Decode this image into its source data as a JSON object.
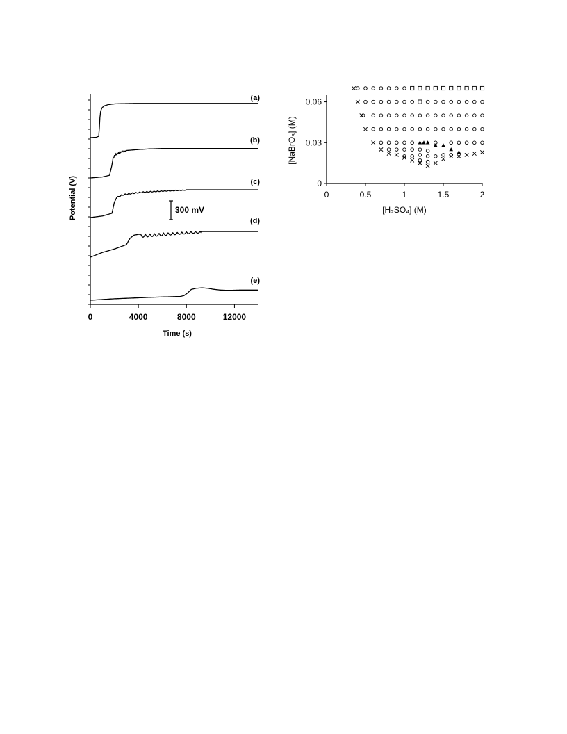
{
  "chart_data": [
    {
      "type": "line",
      "xlabel": "Time (s)",
      "ylabel": "Potential (V)",
      "xlim": [
        0,
        14000
      ],
      "x_ticks": [
        "0",
        "4000",
        "8000",
        "12000"
      ],
      "scale_bar_label": "300 mV",
      "grid": false,
      "series": [
        {
          "name": "(a)",
          "x": [
            0,
            500,
            700,
            750,
            800,
            850,
            900,
            950,
            1000,
            1200,
            1500,
            2000,
            3000,
            4000,
            6000,
            8000,
            10000,
            12000,
            14000
          ],
          "y": [
            0,
            0.01,
            0.04,
            0.28,
            0.58,
            0.74,
            0.8,
            0.84,
            0.87,
            0.92,
            0.95,
            0.97,
            0.98,
            0.985,
            0.985,
            0.985,
            0.985,
            0.985,
            0.985
          ]
        },
        {
          "name": "(b)",
          "x": [
            0,
            1000,
            1600,
            1800,
            1900,
            2000,
            2100,
            2300,
            2600,
            3000,
            4000,
            5000,
            6000,
            8000,
            10000,
            12000,
            14000
          ],
          "y": [
            0,
            0.03,
            0.08,
            0.4,
            0.62,
            0.7,
            0.74,
            0.78,
            0.82,
            0.84,
            0.87,
            0.89,
            0.9,
            0.9,
            0.9,
            0.9,
            0.9
          ],
          "oscillation": {
            "start": 1900,
            "end": 3000,
            "period": 110,
            "amp": 0.05
          }
        },
        {
          "name": "(c)",
          "x": [
            0,
            1000,
            1800,
            2000,
            2200,
            2400,
            2800,
            3500,
            4500,
            6000,
            7500,
            8000,
            10000,
            12000,
            14000
          ],
          "y": [
            0,
            0.05,
            0.14,
            0.5,
            0.66,
            0.72,
            0.77,
            0.81,
            0.85,
            0.88,
            0.9,
            0.91,
            0.91,
            0.91,
            0.91
          ],
          "oscillation": {
            "start": 2300,
            "end": 8000,
            "period": 300,
            "amp": 0.035
          }
        },
        {
          "name": "(d)",
          "x": [
            0,
            1000,
            2000,
            3000,
            3300,
            3600,
            4000,
            5000,
            6000,
            7000,
            8000,
            8500,
            9000,
            10000,
            12000,
            14000
          ],
          "y": [
            0,
            0.15,
            0.26,
            0.4,
            0.6,
            0.7,
            0.73,
            0.75,
            0.77,
            0.79,
            0.81,
            0.82,
            0.82,
            0.82,
            0.82,
            0.82
          ],
          "oscillation": {
            "start": 4200,
            "end": 9200,
            "period": 380,
            "amp": 0.1
          }
        },
        {
          "name": "(e)",
          "x": [
            0,
            2000,
            5000,
            7500,
            7800,
            8100,
            8400,
            8800,
            9300,
            9800,
            10200,
            10800,
            11500,
            12500,
            14000
          ],
          "y": [
            0,
            0.1,
            0.2,
            0.26,
            0.32,
            0.5,
            0.74,
            0.82,
            0.85,
            0.82,
            0.76,
            0.7,
            0.68,
            0.7,
            0.7
          ]
        }
      ]
    },
    {
      "type": "scatter",
      "xlabel": "[H₂SO₄] (M)",
      "ylabel": "[NaBrO₃] (M)",
      "xlim": [
        0,
        2
      ],
      "ylim": [
        0,
        0.07
      ],
      "x_ticks": [
        "0",
        "0.5",
        "1",
        "1.5",
        "2"
      ],
      "y_ticks": [
        "0",
        "0.03",
        "0.06"
      ],
      "grid": false,
      "series": [
        {
          "marker": "circle",
          "points": [
            [
              0.4,
              0.07
            ],
            [
              0.5,
              0.07
            ],
            [
              0.6,
              0.07
            ],
            [
              0.7,
              0.07
            ],
            [
              0.8,
              0.07
            ],
            [
              0.9,
              0.07
            ],
            [
              1.0,
              0.07
            ],
            [
              0.5,
              0.06
            ],
            [
              0.6,
              0.06
            ],
            [
              0.7,
              0.06
            ],
            [
              0.8,
              0.06
            ],
            [
              0.9,
              0.06
            ],
            [
              1.0,
              0.06
            ],
            [
              1.1,
              0.06
            ],
            [
              1.3,
              0.06
            ],
            [
              1.4,
              0.06
            ],
            [
              1.5,
              0.06
            ],
            [
              1.6,
              0.06
            ],
            [
              1.7,
              0.06
            ],
            [
              1.8,
              0.06
            ],
            [
              1.9,
              0.06
            ],
            [
              2.0,
              0.06
            ],
            [
              0.47,
              0.05
            ],
            [
              0.6,
              0.05
            ],
            [
              0.7,
              0.05
            ],
            [
              0.8,
              0.05
            ],
            [
              0.9,
              0.05
            ],
            [
              1.0,
              0.05
            ],
            [
              1.1,
              0.05
            ],
            [
              1.2,
              0.05
            ],
            [
              1.3,
              0.05
            ],
            [
              1.4,
              0.05
            ],
            [
              1.5,
              0.05
            ],
            [
              1.6,
              0.05
            ],
            [
              1.7,
              0.05
            ],
            [
              1.8,
              0.05
            ],
            [
              1.9,
              0.05
            ],
            [
              2.0,
              0.05
            ],
            [
              0.6,
              0.04
            ],
            [
              0.7,
              0.04
            ],
            [
              0.8,
              0.04
            ],
            [
              0.9,
              0.04
            ],
            [
              1.0,
              0.04
            ],
            [
              1.1,
              0.04
            ],
            [
              1.2,
              0.04
            ],
            [
              1.3,
              0.04
            ],
            [
              1.4,
              0.04
            ],
            [
              1.5,
              0.04
            ],
            [
              1.6,
              0.04
            ],
            [
              1.7,
              0.04
            ],
            [
              1.8,
              0.04
            ],
            [
              1.9,
              0.04
            ],
            [
              2.0,
              0.04
            ],
            [
              0.7,
              0.03
            ],
            [
              0.8,
              0.03
            ],
            [
              0.9,
              0.03
            ],
            [
              1.0,
              0.03
            ],
            [
              1.1,
              0.03
            ],
            [
              1.4,
              0.03
            ],
            [
              1.6,
              0.03
            ],
            [
              1.7,
              0.03
            ],
            [
              1.8,
              0.03
            ],
            [
              1.9,
              0.03
            ],
            [
              2.0,
              0.03
            ],
            [
              0.8,
              0.025
            ],
            [
              0.9,
              0.025
            ],
            [
              1.0,
              0.025
            ],
            [
              1.1,
              0.025
            ],
            [
              1.2,
              0.025
            ],
            [
              1.3,
              0.024
            ],
            [
              1.0,
              0.02
            ],
            [
              1.1,
              0.02
            ],
            [
              1.2,
              0.021
            ],
            [
              1.3,
              0.02
            ],
            [
              1.4,
              0.02
            ],
            [
              1.5,
              0.021
            ],
            [
              1.6,
              0.021
            ],
            [
              1.2,
              0.017
            ],
            [
              1.3,
              0.016
            ]
          ]
        },
        {
          "marker": "square",
          "points": [
            [
              1.1,
              0.07
            ],
            [
              1.2,
              0.07
            ],
            [
              1.3,
              0.07
            ],
            [
              1.4,
              0.07
            ],
            [
              1.5,
              0.07
            ],
            [
              1.6,
              0.07
            ],
            [
              1.7,
              0.07
            ],
            [
              1.8,
              0.07
            ],
            [
              1.9,
              0.07
            ],
            [
              2.0,
              0.07
            ],
            [
              1.2,
              0.06
            ]
          ]
        },
        {
          "marker": "cross",
          "points": [
            [
              0.35,
              0.07
            ],
            [
              0.4,
              0.06
            ],
            [
              0.45,
              0.05
            ],
            [
              0.5,
              0.04
            ],
            [
              0.6,
              0.03
            ],
            [
              0.7,
              0.025
            ],
            [
              0.8,
              0.022
            ],
            [
              0.9,
              0.021
            ],
            [
              1.0,
              0.019
            ],
            [
              1.1,
              0.017
            ],
            [
              1.2,
              0.015
            ],
            [
              1.3,
              0.013
            ],
            [
              1.4,
              0.015
            ],
            [
              1.5,
              0.018
            ],
            [
              1.6,
              0.02
            ],
            [
              1.7,
              0.02
            ],
            [
              1.8,
              0.021
            ],
            [
              1.9,
              0.022
            ],
            [
              2.0,
              0.023
            ]
          ]
        },
        {
          "marker": "triangle",
          "points": [
            [
              1.2,
              0.03
            ],
            [
              1.25,
              0.03
            ],
            [
              1.3,
              0.03
            ],
            [
              1.4,
              0.028
            ],
            [
              1.5,
              0.028
            ],
            [
              1.6,
              0.025
            ],
            [
              1.7,
              0.023
            ]
          ]
        }
      ]
    }
  ]
}
